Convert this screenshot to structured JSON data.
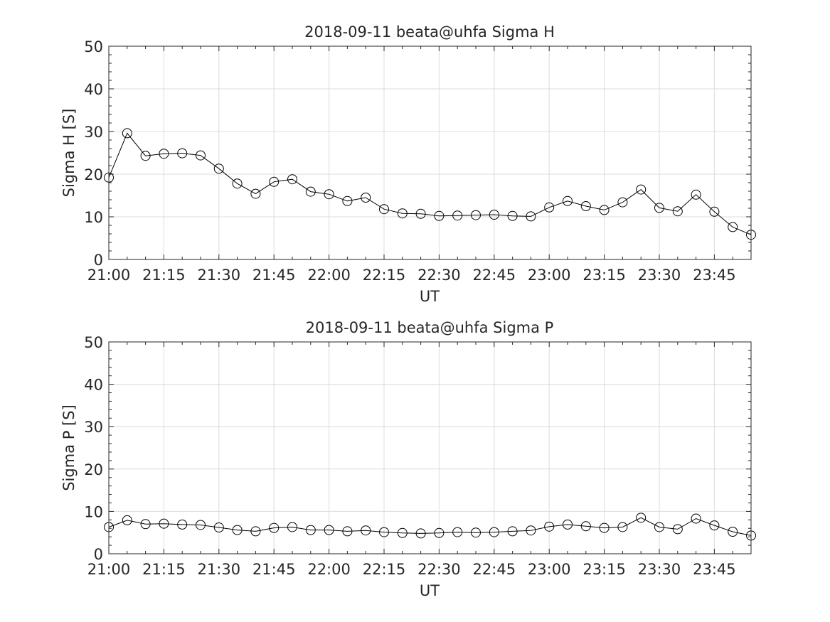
{
  "chart_data": [
    {
      "type": "line",
      "title": "2018-09-11  beata@uhfa Sigma H",
      "xlabel": "UT",
      "ylabel": "Sigma H [S]",
      "ylim": [
        0,
        50
      ],
      "yticks": [
        0,
        10,
        20,
        30,
        40,
        50
      ],
      "xlim": [
        "21:00",
        "23:55"
      ],
      "xticks": [
        "21:00",
        "21:15",
        "21:30",
        "21:45",
        "22:00",
        "22:15",
        "22:30",
        "22:45",
        "23:00",
        "23:15",
        "23:30",
        "23:45"
      ],
      "grid": true,
      "marker": "open-circle",
      "line_color": "#000000",
      "x": [
        "21:00",
        "21:05",
        "21:10",
        "21:15",
        "21:20",
        "21:25",
        "21:30",
        "21:35",
        "21:40",
        "21:45",
        "21:50",
        "21:55",
        "22:00",
        "22:05",
        "22:10",
        "22:15",
        "22:20",
        "22:25",
        "22:30",
        "22:35",
        "22:40",
        "22:45",
        "22:50",
        "22:55",
        "23:00",
        "23:05",
        "23:10",
        "23:15",
        "23:20",
        "23:25",
        "23:30",
        "23:35",
        "23:40",
        "23:45",
        "23:50",
        "23:55"
      ],
      "values": [
        19.2,
        29.6,
        24.3,
        24.8,
        24.9,
        24.4,
        21.3,
        17.8,
        15.4,
        18.2,
        18.8,
        15.9,
        15.3,
        13.7,
        14.5,
        11.8,
        10.8,
        10.7,
        10.2,
        10.3,
        10.4,
        10.5,
        10.2,
        10.1,
        12.2,
        13.7,
        12.5,
        11.6,
        13.4,
        16.4,
        12.1,
        11.3,
        15.2,
        11.2,
        7.6,
        5.8
      ]
    },
    {
      "type": "line",
      "title": "2018-09-11  beata@uhfa Sigma P",
      "xlabel": "UT",
      "ylabel": "Sigma P [S]",
      "ylim": [
        0,
        50
      ],
      "yticks": [
        0,
        10,
        20,
        30,
        40,
        50
      ],
      "xlim": [
        "21:00",
        "23:55"
      ],
      "xticks": [
        "21:00",
        "21:15",
        "21:30",
        "21:45",
        "22:00",
        "22:15",
        "22:30",
        "22:45",
        "23:00",
        "23:15",
        "23:30",
        "23:45"
      ],
      "grid": true,
      "marker": "open-circle",
      "line_color": "#000000",
      "x": [
        "21:00",
        "21:05",
        "21:10",
        "21:15",
        "21:20",
        "21:25",
        "21:30",
        "21:35",
        "21:40",
        "21:45",
        "21:50",
        "21:55",
        "22:00",
        "22:05",
        "22:10",
        "22:15",
        "22:20",
        "22:25",
        "22:30",
        "22:35",
        "22:40",
        "22:45",
        "22:50",
        "22:55",
        "23:00",
        "23:05",
        "23:10",
        "23:15",
        "23:20",
        "23:25",
        "23:30",
        "23:35",
        "23:40",
        "23:45",
        "23:50",
        "23:55"
      ],
      "values": [
        6.3,
        7.9,
        7.0,
        7.1,
        6.9,
        6.8,
        6.2,
        5.6,
        5.3,
        6.1,
        6.3,
        5.6,
        5.6,
        5.3,
        5.5,
        5.1,
        4.9,
        4.8,
        4.9,
        5.1,
        5.0,
        5.1,
        5.3,
        5.5,
        6.4,
        6.9,
        6.5,
        6.1,
        6.3,
        8.5,
        6.3,
        5.8,
        8.3,
        6.7,
        5.2,
        4.3
      ]
    }
  ]
}
